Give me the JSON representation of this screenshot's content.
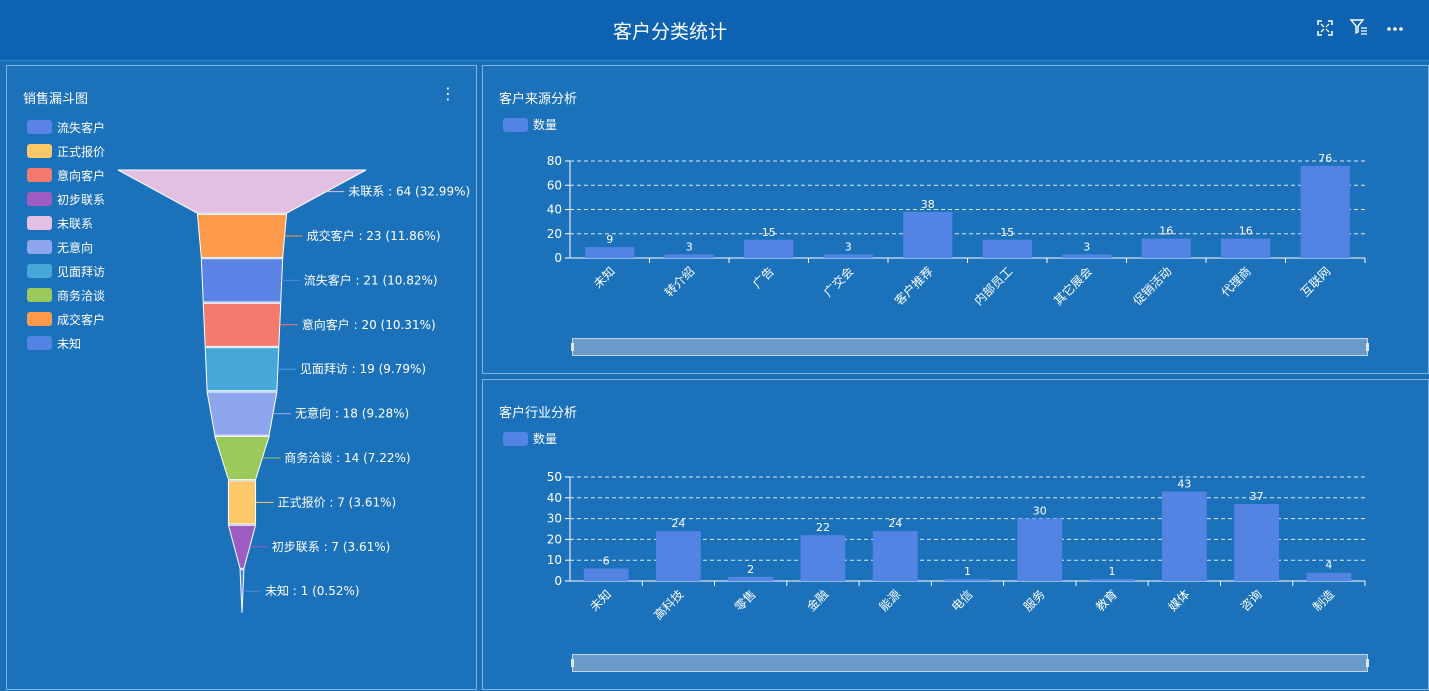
{
  "header": {
    "title": "客户分类统计"
  },
  "icons": [
    "fullscreen-icon",
    "filter-icon",
    "more-icon"
  ],
  "funnel_panel": {
    "title": "销售漏斗图",
    "legend": [
      {
        "label": "流失客户",
        "color": "#5b83e6"
      },
      {
        "label": "正式报价",
        "color": "#fbc86a"
      },
      {
        "label": "意向客户",
        "color": "#f37b6e"
      },
      {
        "label": "初步联系",
        "color": "#9e5bc1"
      },
      {
        "label": "未联系",
        "color": "#e3bfe2"
      },
      {
        "label": "无意向",
        "color": "#8fa6ee"
      },
      {
        "label": "见面拜访",
        "color": "#46a7d9"
      },
      {
        "label": "商务洽谈",
        "color": "#9cc95c"
      },
      {
        "label": "成交客户",
        "color": "#fd9a4b"
      },
      {
        "label": "未知",
        "color": "#5383e3"
      }
    ]
  },
  "source_panel": {
    "title": "客户来源分析",
    "legend_label": "数量"
  },
  "industry_panel": {
    "title": "客户行业分析",
    "legend_label": "数量"
  },
  "chart_data": [
    {
      "type": "funnel",
      "title": "销售漏斗图",
      "stages": [
        {
          "name": "未联系",
          "value": 64,
          "label": "未联系 : 64 (32.99%)",
          "color": "#e3bfe2"
        },
        {
          "name": "成交客户",
          "value": 23,
          "label": "成交客户 : 23 (11.86%)",
          "color": "#fd9a4b"
        },
        {
          "name": "流失客户",
          "value": 21,
          "label": "流失客户 : 21 (10.82%)",
          "color": "#5b83e6"
        },
        {
          "name": "意向客户",
          "value": 20,
          "label": "意向客户 : 20 (10.31%)",
          "color": "#f37b6e"
        },
        {
          "name": "见面拜访",
          "value": 19,
          "label": "见面拜访 : 19 (9.79%)",
          "color": "#46a7d9"
        },
        {
          "name": "无意向",
          "value": 18,
          "label": "无意向 : 18 (9.28%)",
          "color": "#8fa6ee"
        },
        {
          "name": "商务洽谈",
          "value": 14,
          "label": "商务洽谈 : 14 (7.22%)",
          "color": "#9cc95c"
        },
        {
          "name": "正式报价",
          "value": 7,
          "label": "正式报价 : 7 (3.61%)",
          "color": "#fbc86a"
        },
        {
          "name": "初步联系",
          "value": 7,
          "label": "初步联系 : 7 (3.61%)",
          "color": "#9e5bc1"
        },
        {
          "name": "未知",
          "value": 1,
          "label": "未知 : 1 (0.52%)",
          "color": "#5383e3"
        }
      ]
    },
    {
      "type": "bar",
      "title": "客户来源分析",
      "categories": [
        "未知",
        "转介绍",
        "广告",
        "广交会",
        "客户推荐",
        "内部员工",
        "其它展会",
        "促销活动",
        "代理商",
        "互联网"
      ],
      "series": [
        {
          "name": "数量",
          "values": [
            9,
            3,
            15,
            3,
            38,
            15,
            3,
            16,
            16,
            76
          ],
          "color": "#5383e3"
        }
      ],
      "ylim": [
        0,
        80
      ],
      "yticks": [
        0,
        20,
        40,
        60,
        80
      ],
      "grid": true
    },
    {
      "type": "bar",
      "title": "客户行业分析",
      "categories": [
        "未知",
        "高科技",
        "零售",
        "金融",
        "能源",
        "电信",
        "服务",
        "教育",
        "媒体",
        "咨询",
        "制造"
      ],
      "series": [
        {
          "name": "数量",
          "values": [
            6,
            24,
            2,
            22,
            24,
            1,
            30,
            1,
            43,
            37,
            4
          ],
          "color": "#5383e3"
        }
      ],
      "ylim": [
        0,
        50
      ],
      "yticks": [
        0,
        10,
        20,
        30,
        40,
        50
      ],
      "grid": true
    }
  ]
}
